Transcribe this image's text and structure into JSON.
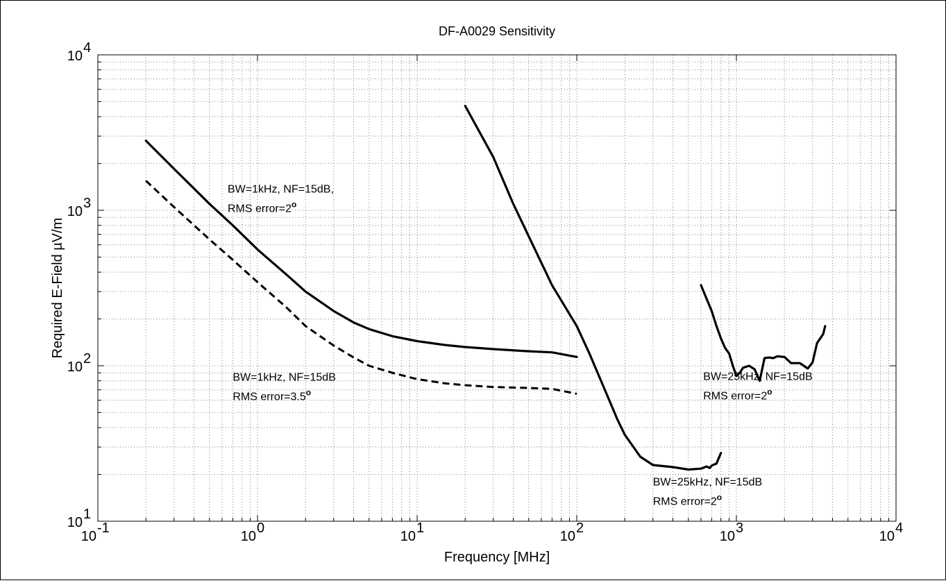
{
  "chart_data": {
    "type": "line",
    "title": "DF-A0029 Sensitivity",
    "xlabel": "Frequency [MHz]",
    "ylabel": "Required E-Field µV/m",
    "xscale": "log",
    "yscale": "log",
    "xlim": [
      0.1,
      10000
    ],
    "ylim": [
      10,
      10000
    ],
    "grid": true,
    "x_ticks": [
      {
        "value": 0.1,
        "base": "10",
        "exp": "-1"
      },
      {
        "value": 1,
        "base": "10",
        "exp": "0"
      },
      {
        "value": 10,
        "base": "10",
        "exp": "1"
      },
      {
        "value": 100,
        "base": "10",
        "exp": "2"
      },
      {
        "value": 1000,
        "base": "10",
        "exp": "3"
      },
      {
        "value": 10000,
        "base": "10",
        "exp": "4"
      }
    ],
    "y_ticks": [
      {
        "value": 10,
        "base": "10",
        "exp": "1"
      },
      {
        "value": 100,
        "base": "10",
        "exp": "2"
      },
      {
        "value": 1000,
        "base": "10",
        "exp": "3"
      },
      {
        "value": 10000,
        "base": "10",
        "exp": "4"
      }
    ],
    "series": [
      {
        "style": "solid",
        "points": [
          [
            0.2,
            2800
          ],
          [
            0.3,
            1850
          ],
          [
            0.5,
            1100
          ],
          [
            0.7,
            800
          ],
          [
            1,
            560
          ],
          [
            1.5,
            390
          ],
          [
            2,
            300
          ],
          [
            3,
            225
          ],
          [
            4,
            190
          ],
          [
            5,
            172
          ],
          [
            7,
            155
          ],
          [
            10,
            144
          ],
          [
            15,
            136
          ],
          [
            20,
            132
          ],
          [
            30,
            128
          ],
          [
            50,
            124
          ],
          [
            70,
            122
          ],
          [
            100,
            114
          ]
        ]
      },
      {
        "style": "dashed",
        "points": [
          [
            0.2,
            1550
          ],
          [
            0.3,
            1050
          ],
          [
            0.5,
            650
          ],
          [
            0.7,
            480
          ],
          [
            1,
            345
          ],
          [
            1.5,
            240
          ],
          [
            2,
            180
          ],
          [
            3,
            135
          ],
          [
            4,
            113
          ],
          [
            5,
            100
          ],
          [
            7,
            90
          ],
          [
            10,
            82
          ],
          [
            15,
            77
          ],
          [
            20,
            75
          ],
          [
            30,
            73
          ],
          [
            50,
            72
          ],
          [
            70,
            71
          ],
          [
            100,
            66
          ]
        ]
      },
      {
        "style": "solid",
        "points": [
          [
            20,
            4700
          ],
          [
            30,
            2200
          ],
          [
            40,
            1100
          ],
          [
            50,
            680
          ],
          [
            70,
            330
          ],
          [
            100,
            180
          ],
          [
            120,
            120
          ],
          [
            150,
            70
          ],
          [
            180,
            45
          ],
          [
            200,
            36
          ],
          [
            250,
            26
          ],
          [
            300,
            23
          ],
          [
            400,
            22.3
          ],
          [
            500,
            21.5
          ],
          [
            600,
            21.8
          ],
          [
            650,
            22.5
          ],
          [
            680,
            22
          ],
          [
            700,
            22.8
          ],
          [
            750,
            23.5
          ],
          [
            800,
            27.5
          ]
        ]
      },
      {
        "style": "solid",
        "points": [
          [
            600,
            330
          ],
          [
            650,
            270
          ],
          [
            700,
            225
          ],
          [
            750,
            180
          ],
          [
            800,
            150
          ],
          [
            850,
            130
          ],
          [
            900,
            120
          ],
          [
            950,
            100
          ],
          [
            1000,
            86
          ],
          [
            1050,
            90
          ],
          [
            1100,
            97
          ],
          [
            1200,
            100
          ],
          [
            1300,
            95
          ],
          [
            1400,
            80
          ],
          [
            1500,
            112
          ],
          [
            1600,
            113
          ],
          [
            1700,
            112
          ],
          [
            1800,
            115
          ],
          [
            2000,
            114
          ],
          [
            2200,
            104
          ],
          [
            2500,
            104
          ],
          [
            2800,
            96
          ],
          [
            3000,
            105
          ],
          [
            3200,
            140
          ],
          [
            3500,
            160
          ],
          [
            3600,
            180
          ]
        ]
      }
    ],
    "annotations": [
      {
        "id": "a1",
        "line1": "BW=1kHz, NF=15dB,",
        "line2_prefix": "RMS error=2",
        "sup": "o",
        "x": 0.65,
        "y": 1300
      },
      {
        "id": "a2",
        "line1": "BW=1kHz, NF=15dB",
        "line2_prefix": "RMS error=3.5",
        "sup": "o",
        "x": 0.7,
        "y": 80
      },
      {
        "id": "a3",
        "line1": "BW=25kHz, NF=15dB",
        "line2_prefix": "RMS error=2",
        "sup": "o",
        "x": 620,
        "y": 81
      },
      {
        "id": "a4",
        "line1": "BW=25kHz, NF=15dB",
        "line2_prefix": "RMS error=2",
        "sup": "o",
        "x": 300,
        "y": 17
      }
    ]
  }
}
